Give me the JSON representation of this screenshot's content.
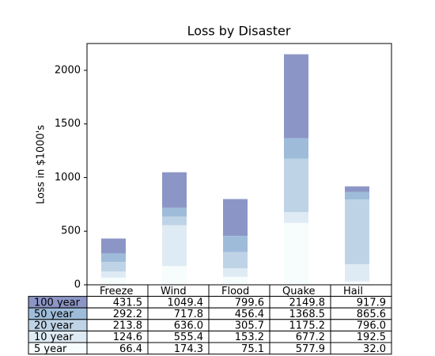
{
  "chart_data": {
    "type": "bar",
    "stacked": true,
    "title": "Loss by Disaster",
    "y_label": "Loss in $1000's",
    "categories": [
      "Freeze",
      "Wind",
      "Flood",
      "Quake",
      "Hail"
    ],
    "series": [
      {
        "name": "100 year",
        "color": "#8c96c6",
        "values": [
          139.361,
          331.509,
          343.164,
          781.38,
          52.269
        ]
      },
      {
        "name": "50 year",
        "color": "#9ebcda",
        "values": [
          78.415,
          81.858,
          150.656,
          193.263,
          69.638
        ]
      },
      {
        "name": "20 year",
        "color": "#bfd3e6",
        "values": [
          89.135,
          80.552,
          152.558,
          497.981,
          603.535
        ]
      },
      {
        "name": "10 year",
        "color": "#dfebf4",
        "values": [
          58.23,
          381.139,
          78.045,
          99.308,
          160.454
        ]
      },
      {
        "name": "5 year",
        "color": "#f7fcfd",
        "values": [
          66.386,
          174.296,
          75.131,
          577.908,
          32.015
        ]
      }
    ],
    "table_cells": [
      [
        "431.5",
        "1049.4",
        "799.6",
        "2149.8",
        "917.9"
      ],
      [
        "292.2",
        "717.8",
        "456.4",
        "1368.5",
        "865.6"
      ],
      [
        "213.8",
        "636.0",
        "305.7",
        "1175.2",
        "796.0"
      ],
      [
        "124.6",
        "555.4",
        "153.2",
        "677.2",
        "192.5"
      ],
      [
        "66.4",
        "174.3",
        "75.1",
        "577.9",
        "32.0"
      ]
    ],
    "ylim": [
      0,
      2250
    ],
    "yticks": [
      0,
      500,
      1000,
      1500,
      2000
    ]
  }
}
